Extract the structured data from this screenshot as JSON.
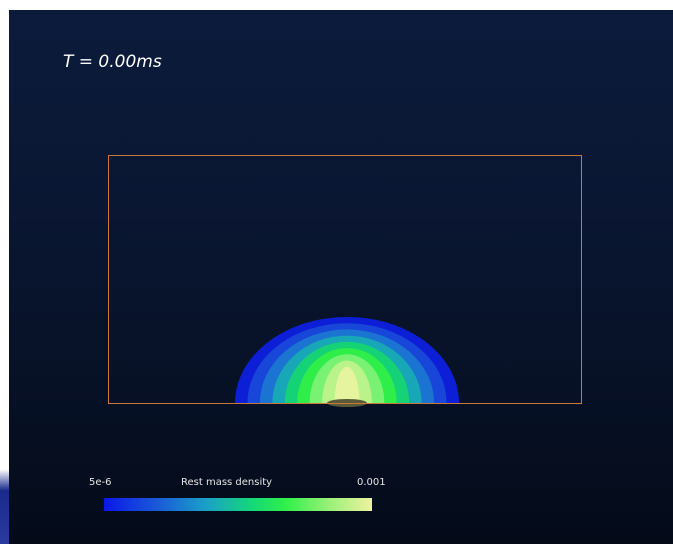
{
  "time_label": "T = 0.00ms",
  "colorbar": {
    "min_label": "5e-6",
    "title": "Rest mass density",
    "max_label": "0.001",
    "colors": [
      "#0a18e8",
      "#1a5ad8",
      "#1aa0c8",
      "#14d878",
      "#30f04a",
      "#9af078",
      "#eef2a0"
    ]
  },
  "colors": {
    "background": "#0a1733",
    "domain_outline": "#c8783a"
  },
  "density_levels": [
    {
      "color": "#0d1fd6"
    },
    {
      "color": "#1846d8"
    },
    {
      "color": "#1b74d2"
    },
    {
      "color": "#17a7b6"
    },
    {
      "color": "#15d277"
    },
    {
      "color": "#2fee4a"
    },
    {
      "color": "#79f274"
    },
    {
      "color": "#b9f38a"
    },
    {
      "color": "#e6f4a0"
    }
  ]
}
